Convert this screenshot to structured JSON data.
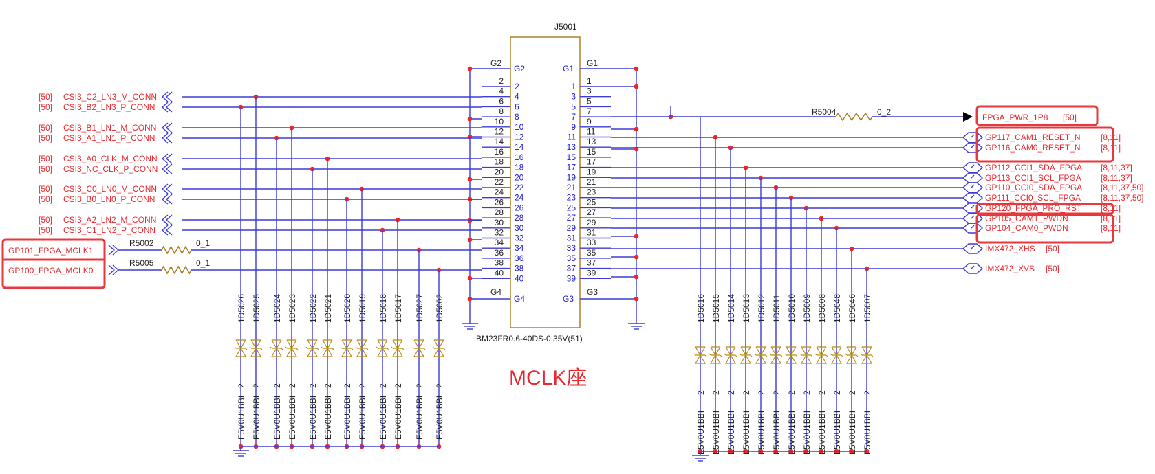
{
  "connector": {
    "ref": "J5001",
    "part": "BM23FR0.6-40DS-0.35V(51)",
    "ground_pins_left": [
      "G2",
      "G4"
    ],
    "ground_pins_right": [
      "G1",
      "G3"
    ],
    "ground_net_left": [
      "G2",
      "G4"
    ],
    "ground_net_right": [
      "G1",
      "G3"
    ],
    "even_pins": [
      "2",
      "4",
      "6",
      "8",
      "10",
      "12",
      "14",
      "16",
      "18",
      "20",
      "22",
      "24",
      "26",
      "28",
      "30",
      "32",
      "34",
      "36",
      "38",
      "40"
    ],
    "odd_pins": [
      "1",
      "3",
      "5",
      "7",
      "9",
      "11",
      "13",
      "15",
      "17",
      "19",
      "21",
      "23",
      "25",
      "27",
      "29",
      "31",
      "33",
      "35",
      "37",
      "39"
    ]
  },
  "left_nets": [
    {
      "ref": "[50]",
      "name": "CSI3_C2_LN3_M_CONN",
      "pin": "4"
    },
    {
      "ref": "[50]",
      "name": "CSI3_B2_LN3_P_CONN",
      "pin": "6"
    },
    {
      "ref": "[50]",
      "name": "CSI3_B1_LN1_M_CONN",
      "pin": "10"
    },
    {
      "ref": "[50]",
      "name": "CSI3_A1_LN1_P_CONN",
      "pin": "12"
    },
    {
      "ref": "[50]",
      "name": "CSI3_A0_CLK_M_CONN",
      "pin": "16"
    },
    {
      "ref": "[50]",
      "name": "CSI3_NC_CLK_P_CONN",
      "pin": "18"
    },
    {
      "ref": "[50]",
      "name": "CSI3_C0_LN0_M_CONN",
      "pin": "22"
    },
    {
      "ref": "[50]",
      "name": "CSI3_B0_LN0_P_CONN",
      "pin": "24"
    },
    {
      "ref": "[50]",
      "name": "CSI3_A2_LN2_M_CONN",
      "pin": "28"
    },
    {
      "ref": "[50]",
      "name": "CSI3_C1_LN2_P_CONN",
      "pin": "30"
    }
  ],
  "mclk_nets": [
    {
      "name": "GP101_FPGA_MCLK1",
      "resistor": "R5002",
      "value": "0_1",
      "pin": "34"
    },
    {
      "name": "GP100_FPGA_MCLK0",
      "resistor": "R5005",
      "value": "0_1",
      "pin": "38"
    }
  ],
  "right_nets": [
    {
      "name": "FPGA_PWR_1P8",
      "ref": "[50]",
      "pin": "9"
    },
    {
      "name": "GP117_CAM1_RESET_N",
      "ref": "[8,11]",
      "pin": "13"
    },
    {
      "name": "GP116_CAM0_RESET_N",
      "ref": "[8,11]",
      "pin": "15"
    },
    {
      "name": "GP112_CCI1_SDA_FPGA",
      "ref": "[8,11,37]",
      "pin": "19"
    },
    {
      "name": "GP113_CCI1_SCL_FPGA",
      "ref": "[8,11,37]",
      "pin": "21"
    },
    {
      "name": "GP110_CCI0_SDA_FPGA",
      "ref": "[8,11,37,50]",
      "pin": "23"
    },
    {
      "name": "GP111_CCI0_SCL_FPGA",
      "ref": "[8,11,37,50]",
      "pin": "25"
    },
    {
      "name": "GP120_FPGA_PRO_RST",
      "ref": "[8,11]",
      "pin": "27"
    },
    {
      "name": "GP105_CAM1_PWDN",
      "ref": "[8,11]",
      "pin": "29"
    },
    {
      "name": "GP104_CAM0_PWDN",
      "ref": "[8,11]",
      "pin": "31"
    },
    {
      "name": "IMX472_XHS",
      "ref": "[50]",
      "pin": "35"
    },
    {
      "name": "IMX472_XVS",
      "ref": "[50]",
      "pin": "37"
    }
  ],
  "pwr_resistor": {
    "ref": "R5004",
    "value": "0_2"
  },
  "left_diodes": [
    "1D5026",
    "1D5025",
    "1D5024",
    "1D5023",
    "1D5022",
    "1D5021",
    "1D5020",
    "1D5019",
    "1D5018",
    "1D5017",
    "1D5027",
    "1D5002"
  ],
  "right_diodes": [
    "1D5016",
    "1D5015",
    "1D5014",
    "1D5013",
    "1D5012",
    "1D5011",
    "1D5010",
    "1D5009",
    "1D5008",
    "1D5048",
    "1D5046",
    "1D5007"
  ],
  "diode_part": "E5V0U1BBI",
  "diode_pin": "2",
  "caption": "MCLK座",
  "colors": {
    "net_text": "#e8282e",
    "pin_text": "#1a1acc",
    "wire": "#3b3bd6",
    "highlight": "#e8383e",
    "resistor": "#a57a1a"
  }
}
